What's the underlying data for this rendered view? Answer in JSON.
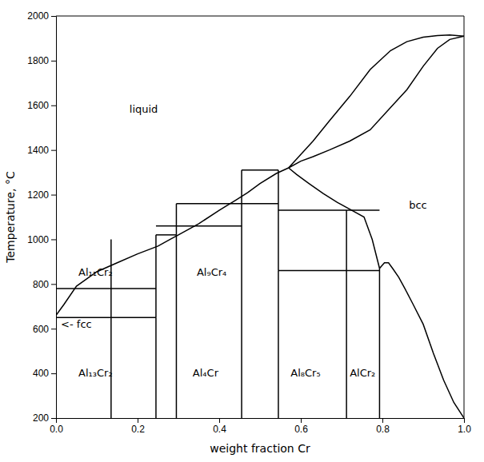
{
  "chart_data": {
    "type": "line",
    "xlabel": "weight fraction Cr",
    "ylabel": "Temperature, °C",
    "xlim": [
      0,
      1.0
    ],
    "ylim": [
      200,
      2000
    ],
    "xticks": [
      {
        "value": 0,
        "label": "0.0"
      },
      0.2,
      0.4,
      0.6,
      0.8,
      {
        "value": 1.0,
        "label": "1.0"
      }
    ],
    "yticks": [
      200,
      400,
      600,
      800,
      1000,
      1200,
      1400,
      1600,
      1800,
      2000
    ],
    "grid": false,
    "color": "#000000",
    "annotations": [
      {
        "text": "liquid",
        "x": 0.18,
        "y": 1580
      },
      {
        "text": "bcc",
        "x": 0.865,
        "y": 1150
      },
      {
        "text": "<- fcc",
        "x": 0.012,
        "y": 618
      },
      {
        "text": "Al₁₃Cr₂",
        "x": 0.055,
        "y": 400
      },
      {
        "text": "Al₁₁Cr₂",
        "x": 0.055,
        "y": 850
      },
      {
        "text": "Al₉Cr₄",
        "x": 0.345,
        "y": 850
      },
      {
        "text": "Al₄Cr",
        "x": 0.335,
        "y": 400
      },
      {
        "text": "Al₈Cr₅",
        "x": 0.575,
        "y": 400
      },
      {
        "text": "AlCr₂",
        "x": 0.72,
        "y": 400
      }
    ],
    "series": [
      {
        "x": [
          0.0,
          0.02,
          0.05,
          0.1,
          0.15,
          0.2,
          0.25,
          0.28,
          0.3,
          0.35,
          0.4,
          0.44,
          0.47,
          0.5,
          0.54,
          0.57
        ],
        "values": [
          660,
          710,
          790,
          855,
          895,
          935,
          970,
          1000,
          1020,
          1070,
          1130,
          1175,
          1210,
          1250,
          1295,
          1320
        ]
      },
      {
        "x": [
          0.57,
          0.6,
          0.63,
          0.67,
          0.72,
          0.77,
          0.82,
          0.86,
          0.9,
          0.935,
          0.965,
          1.0
        ],
        "values": [
          1320,
          1380,
          1440,
          1530,
          1640,
          1760,
          1845,
          1885,
          1905,
          1912,
          1915,
          1910
        ]
      },
      {
        "x": [
          0.57,
          0.6,
          0.63,
          0.67,
          0.72,
          0.77,
          0.82,
          0.86,
          0.9,
          0.935,
          0.965,
          1.0
        ],
        "values": [
          1320,
          1350,
          1370,
          1400,
          1440,
          1490,
          1590,
          1670,
          1775,
          1855,
          1895,
          1910
        ]
      },
      {
        "x": [
          0.57,
          0.59,
          0.62,
          0.655,
          0.69,
          0.725,
          0.755,
          0.775,
          0.793
        ],
        "values": [
          1320,
          1290,
          1250,
          1205,
          1165,
          1130,
          1100,
          1000,
          870
        ]
      },
      {
        "x": [
          0.793,
          0.805,
          0.815,
          0.825,
          0.84,
          0.855,
          0.875,
          0.9,
          0.925,
          0.95,
          0.975,
          1.0
        ],
        "values": [
          870,
          895,
          895,
          870,
          830,
          780,
          710,
          620,
          490,
          370,
          270,
          200
        ]
      },
      {
        "x": [
          0.0,
          0.0
        ],
        "values": [
          200,
          550
        ]
      },
      {
        "x": [
          0.0,
          0.0
        ],
        "values": [
          550,
          660
        ]
      },
      {
        "x": [
          0.135,
          0.135
        ],
        "values": [
          200,
          650
        ]
      },
      {
        "x": [
          0.135,
          0.135
        ],
        "values": [
          650,
          780
        ]
      },
      {
        "x": [
          0.135,
          0.135
        ],
        "values": [
          780,
          1000
        ]
      },
      {
        "x": [
          0.245,
          0.245
        ],
        "values": [
          200,
          650
        ]
      },
      {
        "x": [
          0.245,
          0.245
        ],
        "values": [
          650,
          780
        ]
      },
      {
        "x": [
          0.245,
          0.245
        ],
        "values": [
          780,
          1020
        ]
      },
      {
        "x": [
          0.295,
          0.295
        ],
        "values": [
          200,
          1020
        ]
      },
      {
        "x": [
          0.295,
          0.295
        ],
        "values": [
          1020,
          1060
        ]
      },
      {
        "x": [
          0.295,
          0.295
        ],
        "values": [
          1060,
          1160
        ]
      },
      {
        "x": [
          0.455,
          0.455
        ],
        "values": [
          200,
          1160
        ]
      },
      {
        "x": [
          0.455,
          0.455
        ],
        "values": [
          1160,
          1310
        ]
      },
      {
        "x": [
          0.545,
          0.545
        ],
        "values": [
          200,
          860
        ]
      },
      {
        "x": [
          0.545,
          0.545
        ],
        "values": [
          860,
          1130
        ]
      },
      {
        "x": [
          0.545,
          0.545
        ],
        "values": [
          1130,
          1310
        ]
      },
      {
        "x": [
          0.712,
          0.712
        ],
        "values": [
          200,
          860
        ]
      },
      {
        "x": [
          0.712,
          0.712
        ],
        "values": [
          860,
          1130
        ]
      },
      {
        "x": [
          0.793,
          0.793
        ],
        "values": [
          200,
          870
        ]
      },
      {
        "x": [
          0.0,
          0.135
        ],
        "values": [
          650,
          650
        ]
      },
      {
        "x": [
          0.0,
          0.135
        ],
        "values": [
          780,
          780
        ]
      },
      {
        "x": [
          0.135,
          0.245
        ],
        "values": [
          650,
          650
        ]
      },
      {
        "x": [
          0.135,
          0.245
        ],
        "values": [
          780,
          780
        ]
      },
      {
        "x": [
          0.245,
          0.295
        ],
        "values": [
          1020,
          1020
        ]
      },
      {
        "x": [
          0.245,
          0.295
        ],
        "values": [
          1060,
          1060
        ]
      },
      {
        "x": [
          0.295,
          0.455
        ],
        "values": [
          1060,
          1060
        ]
      },
      {
        "x": [
          0.295,
          0.455
        ],
        "values": [
          1160,
          1160
        ]
      },
      {
        "x": [
          0.455,
          0.545
        ],
        "values": [
          1160,
          1160
        ]
      },
      {
        "x": [
          0.455,
          0.545
        ],
        "values": [
          1310,
          1310
        ]
      },
      {
        "x": [
          0.545,
          0.712
        ],
        "values": [
          860,
          860
        ]
      },
      {
        "x": [
          0.545,
          0.712
        ],
        "values": [
          1130,
          1130
        ]
      },
      {
        "x": [
          0.712,
          0.793
        ],
        "values": [
          860,
          860
        ]
      },
      {
        "x": [
          0.712,
          0.793
        ],
        "values": [
          1130,
          1130
        ]
      }
    ]
  }
}
